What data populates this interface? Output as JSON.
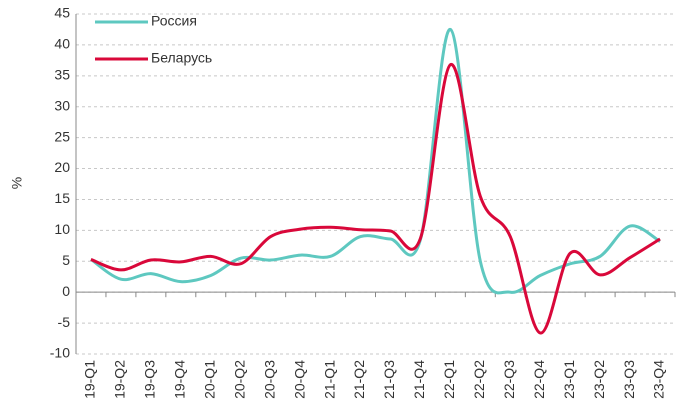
{
  "chart_data": {
    "type": "line",
    "categories": [
      "19-Q1",
      "19-Q2",
      "19-Q3",
      "19-Q4",
      "20-Q1",
      "20-Q2",
      "20-Q3",
      "20-Q4",
      "21-Q1",
      "21-Q2",
      "21-Q3",
      "21-Q4",
      "22-Q1",
      "22-Q2",
      "22-Q3",
      "22-Q4",
      "23-Q1",
      "23-Q2",
      "23-Q3",
      "23-Q4"
    ],
    "series": [
      {
        "name": "Россия",
        "color": "#5ec8c0",
        "values": [
          5.3,
          2.1,
          3.0,
          1.7,
          2.7,
          5.5,
          5.2,
          6.0,
          5.8,
          9.0,
          8.6,
          8.5,
          42.5,
          5.0,
          0.0,
          2.7,
          4.6,
          5.8,
          10.7,
          8.2
        ]
      },
      {
        "name": "Беларусь",
        "color": "#d9083a",
        "values": [
          5.3,
          3.6,
          5.2,
          4.9,
          5.8,
          4.6,
          9.0,
          10.2,
          10.5,
          10.1,
          9.9,
          8.7,
          36.8,
          15.5,
          9.0,
          -6.6,
          6.3,
          2.8,
          5.6,
          8.6
        ]
      }
    ],
    "y_label": "%",
    "ylim": [
      -10,
      45
    ],
    "yticks": [
      -10,
      -5,
      0,
      5,
      10,
      15,
      20,
      25,
      30,
      35,
      40,
      45
    ],
    "grid": true,
    "legend": "upper left",
    "smooth": true
  }
}
